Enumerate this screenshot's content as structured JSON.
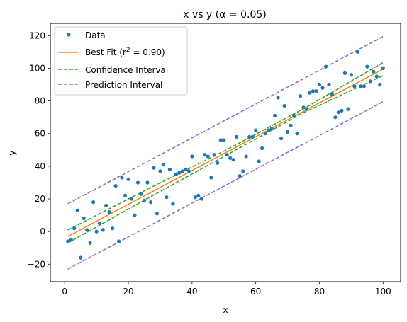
{
  "chart_data": {
    "type": "scatter",
    "title": "x vs y (α = 0.05)",
    "xlabel": "x",
    "ylabel": "y",
    "xlim": [
      -4.5,
      105.5
    ],
    "ylim": [
      -30.7,
      127.5
    ],
    "xticks": [
      0,
      20,
      40,
      60,
      80,
      100
    ],
    "yticks": [
      -20,
      0,
      20,
      40,
      60,
      80,
      100,
      120
    ],
    "tick_labels": {
      "x": [
        "0",
        "20",
        "40",
        "60",
        "80",
        "100"
      ],
      "y": [
        "−20",
        "0",
        "20",
        "40",
        "60",
        "80",
        "100",
        "120"
      ]
    },
    "grid": false,
    "legend_position": "top-left",
    "colors": {
      "data": "#1f77b4",
      "best_fit": "#ff7f0e",
      "confidence": "#2ca02c",
      "prediction": "#9467bd"
    },
    "series": [
      {
        "name": "Data",
        "kind": "scatter",
        "x": [
          1,
          2,
          3,
          4,
          5,
          6,
          7,
          8,
          9,
          10,
          11,
          12,
          13,
          14,
          15,
          16,
          17,
          18,
          19,
          20,
          21,
          22,
          23,
          24,
          25,
          26,
          27,
          28,
          29,
          30,
          31,
          32,
          33,
          34,
          35,
          36,
          37,
          38,
          39,
          40,
          41,
          42,
          43,
          44,
          45,
          46,
          47,
          48,
          49,
          50,
          51,
          52,
          53,
          54,
          55,
          56,
          57,
          58,
          59,
          60,
          61,
          62,
          63,
          64,
          65,
          66,
          67,
          68,
          69,
          70,
          71,
          72,
          73,
          74,
          75,
          76,
          77,
          78,
          79,
          80,
          81,
          82,
          83,
          84,
          85,
          86,
          87,
          88,
          89,
          90,
          91,
          92,
          93,
          94,
          95,
          96,
          97,
          98,
          99,
          100
        ],
        "y": [
          -6,
          -5,
          2,
          13,
          -16,
          8,
          1,
          -7,
          18,
          0,
          5,
          1,
          16,
          12,
          2,
          28,
          -6,
          33,
          22,
          32,
          20,
          10,
          30,
          23,
          19,
          30,
          18,
          39,
          11,
          37,
          41,
          21,
          38,
          17,
          35,
          36,
          37,
          38,
          37,
          46,
          21,
          22,
          20,
          47,
          46,
          33,
          47,
          42,
          56,
          56,
          47,
          45,
          44,
          58,
          34,
          37,
          46,
          58,
          58,
          62,
          43,
          51,
          60,
          62,
          63,
          71,
          82,
          57,
          77,
          61,
          65,
          71,
          60,
          83,
          76,
          75,
          85,
          86,
          86,
          90,
          88,
          101,
          90,
          84,
          70,
          73,
          74,
          97,
          75,
          96,
          89,
          110,
          89,
          89,
          101,
          92,
          98,
          95,
          90,
          100
        ]
      },
      {
        "name": "Best Fit (r² = 0.90)",
        "kind": "line",
        "x": [
          1,
          100
        ],
        "y": [
          -3.0,
          99.5
        ]
      },
      {
        "name": "Confidence Interval",
        "kind": "band",
        "x": [
          1,
          25.75,
          50.5,
          75.25,
          100
        ],
        "upper": [
          1.0,
          25.7,
          49.7,
          75.4,
          103.5
        ],
        "lower": [
          -7.0,
          20.0,
          46.5,
          73.0,
          95.5
        ]
      },
      {
        "name": "Prediction Interval",
        "kind": "band",
        "x": [
          1,
          100
        ],
        "upper": [
          17.0,
          119.5
        ],
        "lower": [
          -23.0,
          79.5
        ]
      }
    ],
    "legend": [
      {
        "label_text": "Data",
        "marker": "dot"
      },
      {
        "label_text": "Best Fit (r",
        "label_sup": "2",
        "label_after": " = 0.90)",
        "marker": "line-solid"
      },
      {
        "label_text": "Confidence Interval",
        "marker": "line-dashed"
      },
      {
        "label_text": "Prediction Interval",
        "marker": "line-dashed"
      }
    ]
  }
}
